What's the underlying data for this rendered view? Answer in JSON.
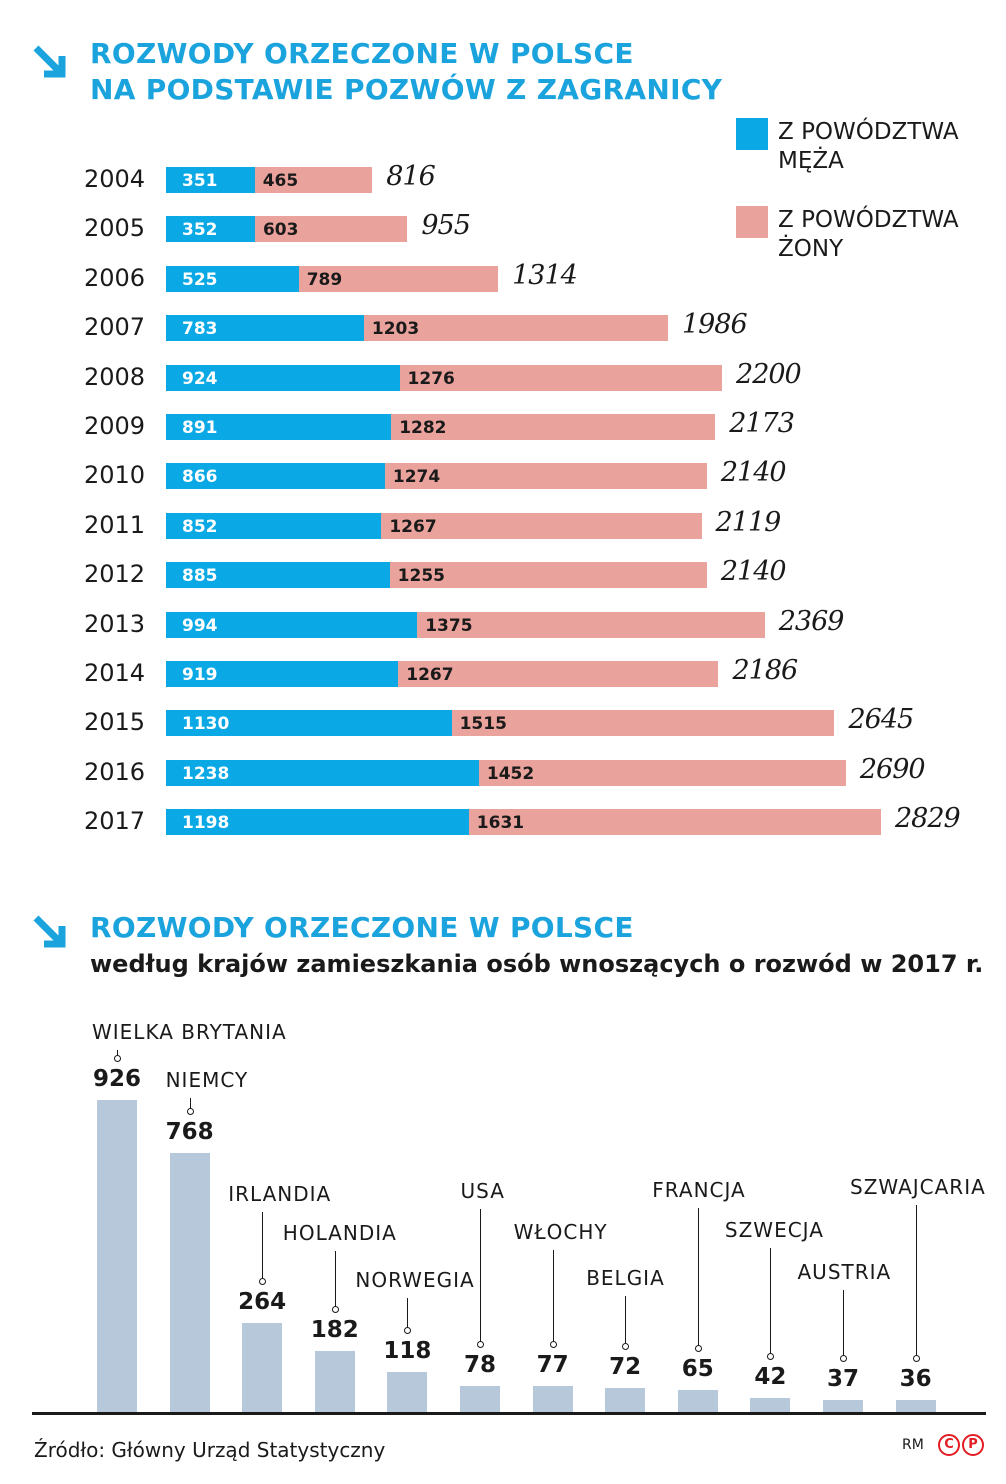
{
  "chart1": {
    "title_line1": "ROZWODY ORZECZONE W POLSCE",
    "title_line2": "NA PODSTAWIE POZWÓW Z ZAGRANICY",
    "legend": [
      {
        "line1": "Z POWÓDZTWA",
        "line2": "MĘŻA",
        "color": "#0aa9e6"
      },
      {
        "line1": "Z POWÓDZTWA",
        "line2": "ŻONY",
        "color": "#e9a29c"
      }
    ]
  },
  "chart2": {
    "title": "ROZWODY ORZECZONE W POLSCE",
    "subtitle": "według krajów zamieszkania osób wnoszących o rozwód w 2017 r."
  },
  "chart_data": [
    {
      "type": "bar",
      "orientation": "horizontal",
      "stacked": true,
      "title": "ROZWODY ORZECZONE W POLSCE NA PODSTAWIE POZWÓW Z ZAGRANICY",
      "categories": [
        "2004",
        "2005",
        "2006",
        "2007",
        "2008",
        "2009",
        "2010",
        "2011",
        "2012",
        "2013",
        "2014",
        "2015",
        "2016",
        "2017"
      ],
      "series": [
        {
          "name": "Z POWÓDZTWA MĘŻA",
          "color": "#0aa9e6",
          "values": [
            351,
            352,
            525,
            783,
            924,
            891,
            866,
            852,
            885,
            994,
            919,
            1130,
            1238,
            1198
          ]
        },
        {
          "name": "Z POWÓDZTWA ŻONY",
          "color": "#e9a29c",
          "values": [
            465,
            603,
            789,
            1203,
            1276,
            1282,
            1274,
            1267,
            1255,
            1375,
            1267,
            1515,
            1452,
            1631
          ]
        }
      ],
      "totals": [
        "816",
        "955",
        "1314",
        "1986",
        "2200",
        "2173",
        "2140",
        "2119",
        "2140",
        "2369",
        "2186",
        "2645",
        "2690",
        "2829"
      ],
      "xlim": [
        0,
        2829
      ]
    },
    {
      "type": "bar",
      "title": "ROZWODY ORZECZONE W POLSCE według krajów zamieszkania osób wnoszących o rozwód w 2017 r.",
      "categories": [
        "WIELKA BRYTANIA",
        "NIEMCY",
        "IRLANDIA",
        "HOLANDIA",
        "NORWEGIA",
        "USA",
        "WŁOCHY",
        "BELGIA",
        "FRANCJA",
        "SZWECJA",
        "AUSTRIA",
        "SZWAJCARIA"
      ],
      "values": [
        926,
        768,
        264,
        182,
        118,
        78,
        77,
        72,
        65,
        42,
        37,
        36
      ],
      "ylim": [
        0,
        926
      ]
    }
  ],
  "footer": {
    "source": "Źródło: Główny Urząd Statystyczny",
    "author": "RM",
    "logo_letters": [
      "C",
      "P"
    ]
  }
}
